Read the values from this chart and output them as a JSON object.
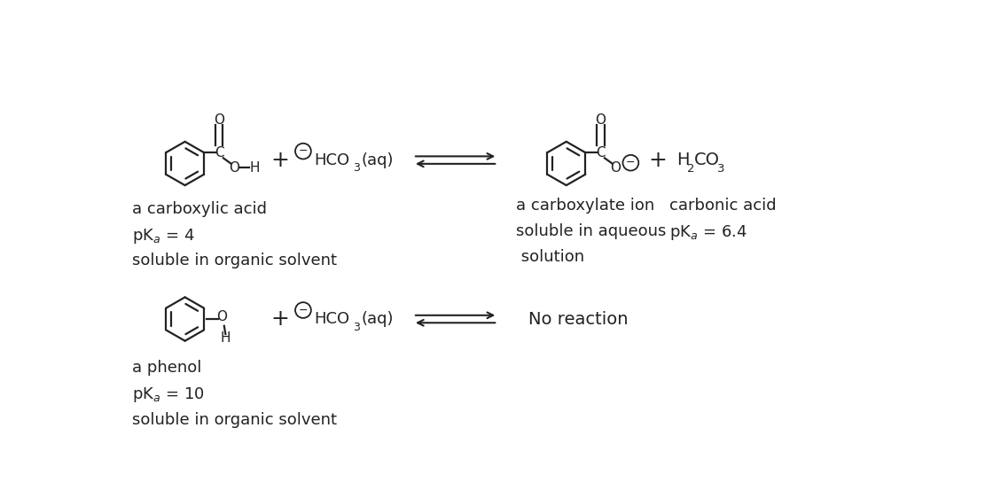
{
  "bg_color": "#ffffff",
  "text_color": "#222222",
  "fig_width": 11.11,
  "fig_height": 5.62,
  "structure_color": "#222222",
  "rxn1": {
    "label1": "a carboxylic acid",
    "label2": "pK$_a$ = 4",
    "label3": "soluble in organic solvent",
    "prod_label1": "a carboxylate ion",
    "prod_label2": "soluble in aqueous",
    "prod_label3": " solution",
    "prod2_label1": "carbonic acid",
    "prod2_label2": "pK$_a$ = 6.4"
  },
  "rxn2": {
    "label1": "a phenol",
    "label2": "pK$_a$ = 10",
    "label3": "soluble in organic solvent",
    "prod_label": "No reaction"
  }
}
